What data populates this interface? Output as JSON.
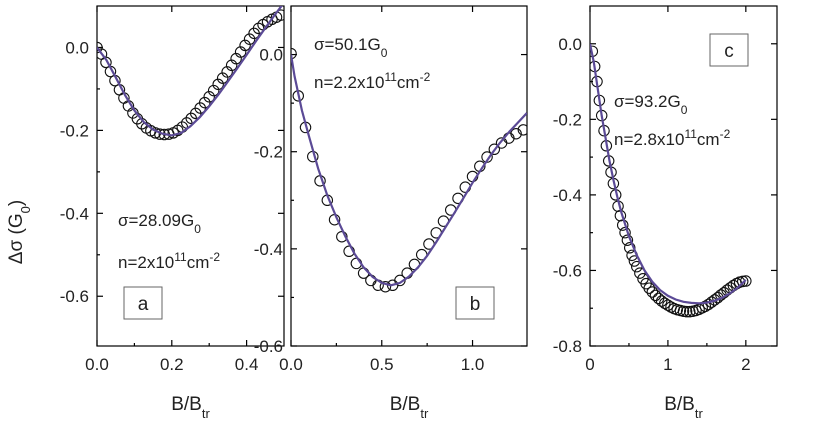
{
  "colors": {
    "fit_line": "#5b4a96",
    "marker_stroke": "#111111"
  },
  "y_axis_label": {
    "main": "Δσ (G",
    "sub": "0",
    "close": ")"
  },
  "chart_data": [
    {
      "type": "scatter",
      "panel_label": "a",
      "xlabel": {
        "main": "B/B",
        "sub": "tr"
      },
      "xlim": [
        0,
        0.5
      ],
      "ylim": [
        -0.72,
        0.1
      ],
      "xticks": [
        "0.0",
        "0.2",
        "0.4"
      ],
      "yticks": [
        "0.0",
        "-0.2",
        "-0.4",
        "-0.6"
      ],
      "annotations": [
        {
          "main": "σ=28.09G",
          "sub": "0"
        },
        {
          "main": "n=2x10",
          "sup": "11",
          "tail": "cm",
          "sup2": "-2"
        }
      ],
      "series": [
        {
          "kind": "markers",
          "x": [
            0,
            0.012,
            0.024,
            0.036,
            0.048,
            0.06,
            0.072,
            0.084,
            0.096,
            0.108,
            0.12,
            0.132,
            0.144,
            0.156,
            0.168,
            0.18,
            0.192,
            0.204,
            0.216,
            0.228,
            0.24,
            0.252,
            0.264,
            0.276,
            0.288,
            0.3,
            0.312,
            0.324,
            0.336,
            0.348,
            0.36,
            0.372,
            0.384,
            0.396,
            0.408,
            0.42,
            0.432,
            0.444,
            0.456,
            0.468,
            0.48,
            0.492
          ],
          "y": [
            0,
            -0.016,
            -0.036,
            -0.058,
            -0.08,
            -0.102,
            -0.122,
            -0.141,
            -0.158,
            -0.172,
            -0.184,
            -0.194,
            -0.201,
            -0.206,
            -0.209,
            -0.21,
            -0.209,
            -0.206,
            -0.2,
            -0.192,
            -0.182,
            -0.171,
            -0.159,
            -0.146,
            -0.133,
            -0.119,
            -0.104,
            -0.089,
            -0.074,
            -0.059,
            -0.043,
            -0.027,
            -0.011,
            0.005,
            0.02,
            0.034,
            0.046,
            0.055,
            0.062,
            0.068,
            0.073,
            0.078
          ]
        },
        {
          "kind": "line",
          "x": [
            0,
            0.025,
            0.05,
            0.075,
            0.1,
            0.125,
            0.15,
            0.175,
            0.2,
            0.225,
            0.25,
            0.275,
            0.3,
            0.325,
            0.35,
            0.375,
            0.4,
            0.425,
            0.45,
            0.475,
            0.5
          ],
          "y": [
            0,
            -0.03,
            -0.072,
            -0.115,
            -0.152,
            -0.18,
            -0.198,
            -0.208,
            -0.212,
            -0.206,
            -0.19,
            -0.168,
            -0.142,
            -0.113,
            -0.082,
            -0.05,
            -0.018,
            0.015,
            0.047,
            0.078,
            0.108
          ]
        }
      ]
    },
    {
      "type": "scatter",
      "panel_label": "b",
      "xlabel": {
        "main": "B/B",
        "sub": "tr"
      },
      "xlim": [
        0,
        1.3
      ],
      "ylim": [
        -0.6,
        0.1
      ],
      "xticks": [
        "0.0",
        "0.5",
        "1.0"
      ],
      "yticks": [
        "0.0",
        "-0.2",
        "-0.4",
        "-0.6"
      ],
      "annotations": [
        {
          "main": "σ=50.1G",
          "sub": "0"
        },
        {
          "main": "n=2.2x10",
          "sup": "11",
          "tail": "cm",
          "sup2": "-2"
        }
      ],
      "series": [
        {
          "kind": "markers",
          "x": [
            0,
            0.04,
            0.08,
            0.12,
            0.16,
            0.2,
            0.24,
            0.28,
            0.32,
            0.36,
            0.4,
            0.44,
            0.48,
            0.52,
            0.56,
            0.6,
            0.64,
            0.68,
            0.72,
            0.76,
            0.8,
            0.84,
            0.88,
            0.92,
            0.96,
            1.0,
            1.04,
            1.08,
            1.12,
            1.16,
            1.2,
            1.24,
            1.28
          ],
          "y": [
            0.002,
            -0.085,
            -0.15,
            -0.21,
            -0.26,
            -0.3,
            -0.34,
            -0.375,
            -0.405,
            -0.43,
            -0.45,
            -0.465,
            -0.475,
            -0.478,
            -0.475,
            -0.465,
            -0.45,
            -0.432,
            -0.412,
            -0.39,
            -0.367,
            -0.343,
            -0.32,
            -0.296,
            -0.273,
            -0.251,
            -0.23,
            -0.211,
            -0.195,
            -0.182,
            -0.172,
            -0.163,
            -0.155
          ]
        },
        {
          "kind": "line",
          "x": [
            0,
            0.02,
            0.06,
            0.1,
            0.15,
            0.2,
            0.25,
            0.3,
            0.35,
            0.4,
            0.45,
            0.5,
            0.55,
            0.6,
            0.65,
            0.7,
            0.75,
            0.8,
            0.85,
            0.9,
            0.95,
            1.0,
            1.05,
            1.1,
            1.15,
            1.2,
            1.25,
            1.3
          ],
          "y": [
            0,
            -0.045,
            -0.115,
            -0.17,
            -0.235,
            -0.29,
            -0.335,
            -0.375,
            -0.41,
            -0.438,
            -0.458,
            -0.47,
            -0.475,
            -0.47,
            -0.457,
            -0.438,
            -0.414,
            -0.386,
            -0.356,
            -0.326,
            -0.295,
            -0.264,
            -0.235,
            -0.207,
            -0.182,
            -0.16,
            -0.14,
            -0.12
          ]
        }
      ]
    },
    {
      "type": "scatter",
      "panel_label": "c",
      "xlabel": {
        "main": "B/B",
        "sub": "tr"
      },
      "xlim": [
        0,
        2.4
      ],
      "ylim": [
        -0.8,
        0.1
      ],
      "xticks": [
        "0",
        "1",
        "2"
      ],
      "yticks": [
        "0.0",
        "-0.2",
        "-0.4",
        "-0.6",
        "-0.8"
      ],
      "annotations": [
        {
          "main": "σ=93.2G",
          "sub": "0"
        },
        {
          "main": "n=2.8x10",
          "sup": "11",
          "tail": "cm",
          "sup2": "-2"
        }
      ],
      "series": [
        {
          "kind": "markers",
          "x": [
            0.03,
            0.06,
            0.09,
            0.12,
            0.15,
            0.18,
            0.21,
            0.24,
            0.27,
            0.3,
            0.33,
            0.36,
            0.39,
            0.42,
            0.45,
            0.48,
            0.51,
            0.54,
            0.57,
            0.6,
            0.64,
            0.68,
            0.72,
            0.76,
            0.8,
            0.84,
            0.88,
            0.92,
            0.96,
            1.0,
            1.04,
            1.08,
            1.12,
            1.16,
            1.2,
            1.24,
            1.28,
            1.32,
            1.36,
            1.4,
            1.44,
            1.48,
            1.52,
            1.56,
            1.6,
            1.64,
            1.68,
            1.72,
            1.76,
            1.8,
            1.84,
            1.88,
            1.92,
            1.96,
            2.0
          ],
          "y": [
            -0.02,
            -0.06,
            -0.1,
            -0.15,
            -0.19,
            -0.23,
            -0.27,
            -0.31,
            -0.34,
            -0.37,
            -0.4,
            -0.43,
            -0.455,
            -0.48,
            -0.5,
            -0.52,
            -0.54,
            -0.56,
            -0.575,
            -0.59,
            -0.607,
            -0.622,
            -0.635,
            -0.647,
            -0.657,
            -0.666,
            -0.674,
            -0.681,
            -0.687,
            -0.692,
            -0.697,
            -0.701,
            -0.704,
            -0.706,
            -0.708,
            -0.709,
            -0.709,
            -0.708,
            -0.706,
            -0.703,
            -0.699,
            -0.695,
            -0.69,
            -0.684,
            -0.678,
            -0.672,
            -0.665,
            -0.659,
            -0.652,
            -0.646,
            -0.64,
            -0.635,
            -0.631,
            -0.629,
            -0.628
          ]
        },
        {
          "kind": "line",
          "x": [
            0,
            0.05,
            0.1,
            0.15,
            0.2,
            0.25,
            0.3,
            0.35,
            0.4,
            0.5,
            0.6,
            0.7,
            0.8,
            0.9,
            1.0,
            1.1,
            1.2,
            1.3,
            1.4,
            1.5,
            1.6,
            1.7,
            1.8,
            1.9,
            2.0
          ],
          "y": [
            0,
            -0.05,
            -0.12,
            -0.19,
            -0.25,
            -0.31,
            -0.36,
            -0.405,
            -0.445,
            -0.51,
            -0.56,
            -0.6,
            -0.63,
            -0.652,
            -0.667,
            -0.677,
            -0.683,
            -0.686,
            -0.687,
            -0.685,
            -0.68,
            -0.672,
            -0.66,
            -0.645,
            -0.625
          ]
        }
      ]
    }
  ]
}
